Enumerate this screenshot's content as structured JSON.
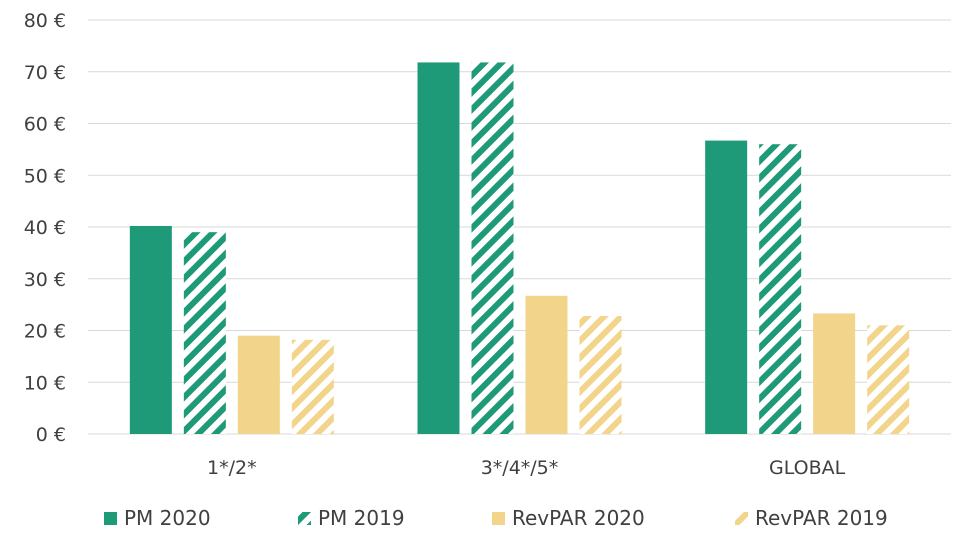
{
  "chart_data": {
    "type": "bar",
    "categories": [
      "1*/2*",
      "3*/4*/5*",
      "GLOBAL"
    ],
    "series": [
      {
        "name": "PM 2020",
        "values": [
          40.2,
          71.8,
          56.7
        ],
        "color": "#1f9a78",
        "pattern": "solid"
      },
      {
        "name": "PM 2019",
        "values": [
          39.0,
          71.8,
          56.0
        ],
        "color": "#1f9a78",
        "pattern": "hatched"
      },
      {
        "name": "RevPAR 2020",
        "values": [
          19.0,
          26.7,
          23.3
        ],
        "color": "#f2d48a",
        "pattern": "solid"
      },
      {
        "name": "RevPAR 2019",
        "values": [
          18.2,
          22.8,
          21.0
        ],
        "color": "#f2d48a",
        "pattern": "hatched"
      }
    ],
    "yticks": [
      "0 €",
      "10 €",
      "20 €",
      "30 €",
      "40 €",
      "50 €",
      "60 €",
      "70 €",
      "80 €"
    ],
    "ylim": [
      0,
      80
    ],
    "grid": true,
    "legend": "bottom"
  }
}
